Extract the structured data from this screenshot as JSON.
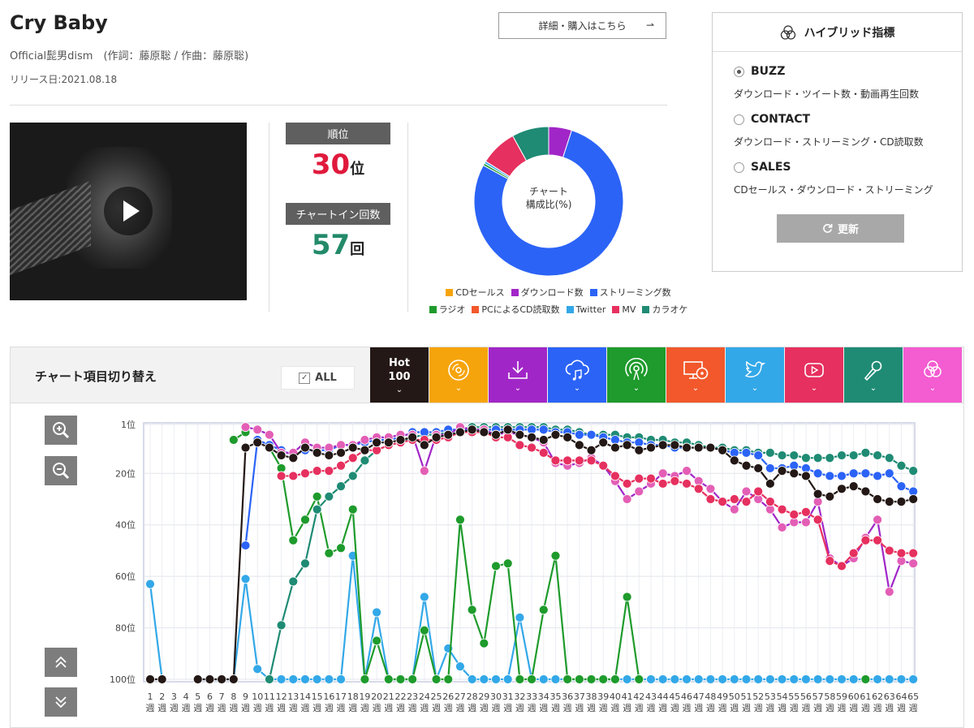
{
  "song": {
    "title": "Cry Baby",
    "artist": "Official髭男dism　(作詞：藤原聡 / 作曲：藤原聡)",
    "release": "リリース日:2021.08.18",
    "buy_label": "詳細・購入はこちら",
    "buy_arrow": "⇀"
  },
  "stats": {
    "rank_label": "順位",
    "rank_value": "30",
    "rank_unit": "位",
    "count_label": "チャートイン回数",
    "count_value": "57",
    "count_unit": "回"
  },
  "donut": {
    "center_line1": "チャート",
    "center_line2": "構成比(%)",
    "slices": [
      {
        "name": "ダウンロード数",
        "value": 5,
        "color": "#a126c7"
      },
      {
        "name": "ストリーミング数",
        "value": 78,
        "color": "#2b63f6"
      },
      {
        "name": "ラジオ",
        "value": 0.5,
        "color": "#1e9b2c"
      },
      {
        "name": "Twitter",
        "value": 0.5,
        "color": "#33a8e8"
      },
      {
        "name": "MV",
        "value": 8,
        "color": "#e6305f"
      },
      {
        "name": "カラオケ",
        "value": 8,
        "color": "#1f8b74"
      }
    ],
    "legend_row1": [
      {
        "label": "CDセールス",
        "color": "#f5a40a"
      },
      {
        "label": "ダウンロード数",
        "color": "#a126c7"
      },
      {
        "label": "ストリーミング数",
        "color": "#2b63f6"
      }
    ],
    "legend_row2": [
      {
        "label": "ラジオ",
        "color": "#1e9b2c"
      },
      {
        "label": "PCによるCD読取数",
        "color": "#f2582b"
      },
      {
        "label": "Twitter",
        "color": "#33a8e8"
      },
      {
        "label": "MV",
        "color": "#e6305f"
      },
      {
        "label": "カラオケ",
        "color": "#1f8b74"
      }
    ]
  },
  "hybrid": {
    "title": "ハイブリッド指標",
    "options": [
      {
        "label": "BUZZ",
        "desc": "ダウンロード・ツイート数・動画再生回数",
        "selected": true
      },
      {
        "label": "CONTACT",
        "desc": "ダウンロード・ストリーミング・CD読取数",
        "selected": false
      },
      {
        "label": "SALES",
        "desc": "CDセールス・ダウンロード・ストリーミング",
        "selected": false
      }
    ],
    "refresh_label": "更新"
  },
  "panel": {
    "switch_label": "チャート項目切り替え",
    "all_label": "ALL",
    "hot_line1": "Hot",
    "hot_line2": "100",
    "chevron": "⌄",
    "tabs": [
      {
        "name": "hot100",
        "color": "#231815"
      },
      {
        "name": "cd-sales",
        "color": "#f6a40b",
        "icon": "disc-icon"
      },
      {
        "name": "download",
        "color": "#a126c7",
        "icon": "download-icon"
      },
      {
        "name": "streaming",
        "color": "#2b63f6",
        "icon": "cloud-music-icon"
      },
      {
        "name": "radio",
        "color": "#1e9b2c",
        "icon": "radio-icon"
      },
      {
        "name": "pc-cd-read",
        "color": "#f2582b",
        "icon": "monitor-disc-icon"
      },
      {
        "name": "twitter",
        "color": "#33a8e8",
        "icon": "twitter-icon"
      },
      {
        "name": "mv",
        "color": "#e6305f",
        "icon": "youtube-icon"
      },
      {
        "name": "karaoke",
        "color": "#1f8b74",
        "icon": "microphone-icon"
      },
      {
        "name": "hybrid",
        "color": "#f45cd1",
        "icon": "hybrid-icon"
      }
    ]
  },
  "chart_data": {
    "type": "line",
    "y_tick_labels": [
      "1位",
      "20位",
      "40位",
      "60位",
      "80位",
      "100位"
    ],
    "y_ticks": [
      1,
      20,
      40,
      60,
      80,
      100
    ],
    "ylim": [
      1,
      100
    ],
    "y_inverted": true,
    "x_unit": "週",
    "x": [
      1,
      2,
      3,
      4,
      5,
      6,
      7,
      8,
      9,
      10,
      11,
      12,
      13,
      14,
      15,
      16,
      17,
      18,
      19,
      20,
      21,
      22,
      23,
      24,
      25,
      26,
      27,
      28,
      29,
      30,
      31,
      32,
      33,
      34,
      35,
      36,
      37,
      38,
      39,
      40,
      41,
      42,
      43,
      44,
      45,
      46,
      47,
      48,
      49,
      50,
      51,
      52,
      53,
      54,
      55,
      56,
      57,
      58,
      59,
      60,
      61,
      62,
      63,
      64,
      65
    ],
    "series": [
      {
        "name": "Twitter",
        "color": "#33a8e8",
        "zorder": 1,
        "values": [
          63,
          100,
          null,
          null,
          100,
          100,
          100,
          100,
          61,
          96,
          100,
          100,
          100,
          100,
          100,
          100,
          100,
          52,
          100,
          74,
          100,
          100,
          100,
          68,
          100,
          88,
          95,
          100,
          100,
          100,
          100,
          76,
          100,
          100,
          100,
          100,
          100,
          100,
          100,
          100,
          100,
          100,
          100,
          100,
          100,
          100,
          100,
          100,
          100,
          100,
          100,
          100,
          100,
          100,
          100,
          100,
          100,
          100,
          100,
          100,
          100,
          100,
          100,
          100,
          100
        ]
      },
      {
        "name": "ラジオ",
        "color": "#1e9b2c",
        "zorder": 2,
        "values": [
          null,
          null,
          null,
          null,
          null,
          null,
          null,
          7,
          4,
          null,
          10,
          18,
          46,
          38,
          29,
          51,
          49,
          34,
          100,
          85,
          100,
          100,
          100,
          81,
          100,
          100,
          38,
          73,
          86,
          56,
          55,
          100,
          100,
          73,
          52,
          100,
          100,
          100,
          100,
          100,
          68,
          100,
          null,
          null,
          null,
          null,
          null,
          null,
          null,
          null,
          null,
          null,
          null,
          null,
          null,
          null,
          null,
          null,
          null,
          null,
          100,
          null,
          null,
          null,
          null
        ]
      },
      {
        "name": "カラオケ",
        "color": "#1f8b74",
        "zorder": 3,
        "values": [
          null,
          null,
          null,
          null,
          null,
          null,
          null,
          null,
          null,
          null,
          100,
          79,
          62,
          55,
          34,
          29,
          25,
          21,
          15,
          11,
          9,
          8,
          6,
          5,
          5,
          4,
          3,
          2,
          2,
          2,
          2,
          2,
          2,
          2,
          3,
          3,
          4,
          5,
          5,
          5,
          6,
          6,
          7,
          7,
          8,
          8,
          9,
          10,
          10,
          11,
          11,
          12,
          12,
          13,
          13,
          14,
          14,
          14,
          13,
          13,
          12,
          13,
          14,
          17,
          19
        ]
      },
      {
        "name": "ストリーミング数",
        "color": "#2b63f6",
        "zorder": 4,
        "values": [
          null,
          null,
          null,
          null,
          null,
          null,
          null,
          null,
          48,
          7,
          9,
          11,
          13,
          11,
          11,
          11,
          9,
          9,
          8,
          7,
          7,
          6,
          4,
          4,
          4,
          3,
          3,
          3,
          3,
          3,
          3,
          3,
          3,
          3,
          4,
          4,
          5,
          5,
          6,
          7,
          8,
          8,
          9,
          9,
          10,
          10,
          10,
          10,
          11,
          12,
          12,
          13,
          18,
          18,
          17,
          18,
          20,
          21,
          21,
          20,
          20,
          21,
          20,
          25,
          27
        ]
      },
      {
        "name": "ダウンロード数",
        "color": "#a126c7",
        "fill": "#e35fb5",
        "zorder": 5,
        "values": [
          null,
          null,
          null,
          null,
          null,
          null,
          null,
          null,
          2,
          3,
          5,
          12,
          12,
          8,
          10,
          10,
          9,
          9,
          7,
          6,
          6,
          5,
          5,
          19,
          5,
          5,
          2,
          3,
          3,
          5,
          4,
          5,
          6,
          8,
          16,
          17,
          16,
          14,
          17,
          23,
          30,
          27,
          24,
          20,
          21,
          19,
          23,
          26,
          31,
          34,
          27,
          30,
          34,
          41,
          39,
          39,
          31,
          53,
          56,
          53,
          45,
          38,
          66,
          54,
          55
        ]
      },
      {
        "name": "MV",
        "color": "#e6305f",
        "zorder": 6,
        "values": [
          null,
          null,
          null,
          null,
          null,
          null,
          null,
          null,
          null,
          null,
          null,
          21,
          21,
          20,
          19,
          19,
          17,
          14,
          11,
          11,
          9,
          8,
          7,
          7,
          7,
          6,
          4,
          4,
          4,
          6,
          6,
          9,
          10,
          12,
          15,
          15,
          15,
          15,
          17,
          21,
          24,
          22,
          22,
          24,
          23,
          24,
          26,
          30,
          31,
          30,
          31,
          27,
          31,
          34,
          36,
          35,
          38,
          54,
          56,
          51,
          46,
          46,
          50,
          51,
          51
        ]
      },
      {
        "name": "Hot 100",
        "color": "#231815",
        "zorder": 7,
        "values": [
          100,
          100,
          null,
          null,
          100,
          100,
          100,
          100,
          10,
          8,
          10,
          13,
          14,
          10,
          12,
          13,
          12,
          10,
          11,
          8,
          8,
          7,
          6,
          9,
          6,
          5,
          4,
          3,
          4,
          5,
          3,
          5,
          6,
          7,
          5,
          6,
          9,
          11,
          8,
          10,
          9,
          11,
          10,
          9,
          9,
          10,
          10,
          10,
          11,
          15,
          17,
          18,
          24,
          19,
          20,
          21,
          28,
          29,
          26,
          25,
          27,
          30,
          31,
          31,
          30
        ]
      }
    ]
  }
}
